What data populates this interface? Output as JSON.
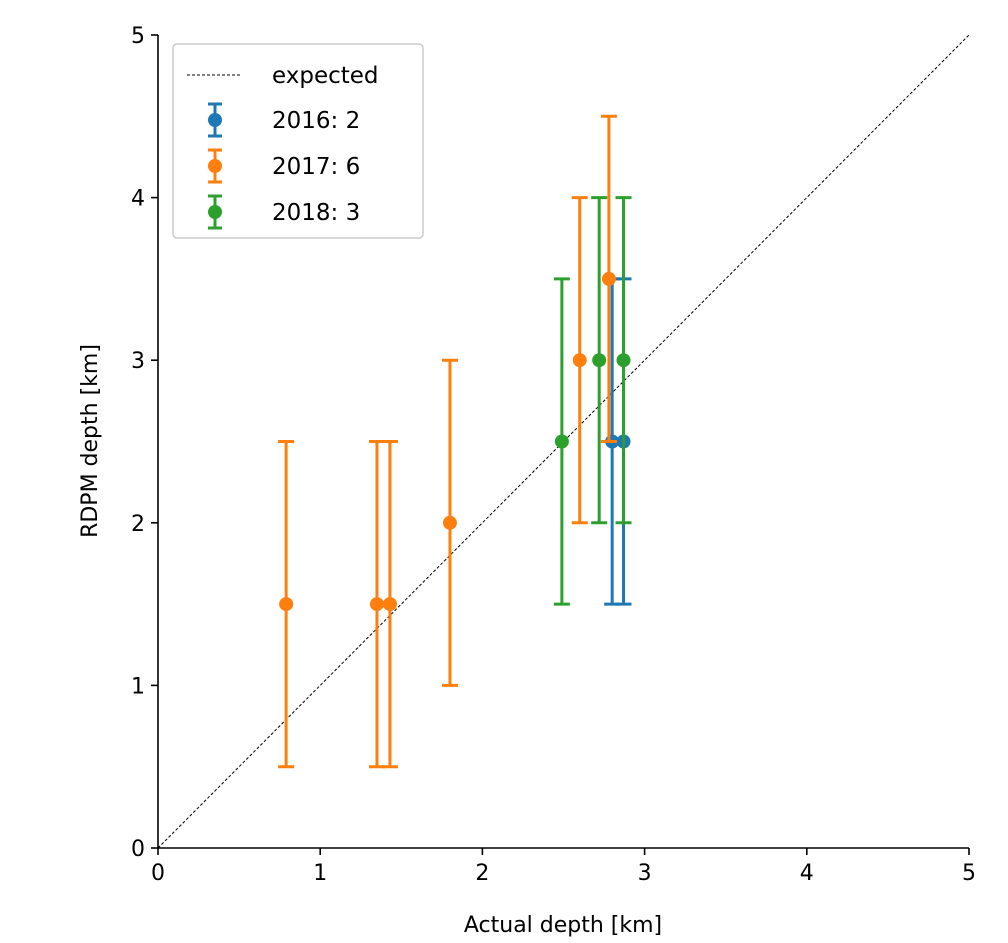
{
  "chart_data": {
    "type": "scatter",
    "xlabel": "Actual depth [km]",
    "ylabel": "RDPM depth [km]",
    "xlim": [
      0,
      5
    ],
    "ylim": [
      0,
      5
    ],
    "x_ticks": [
      "0",
      "1",
      "2",
      "3",
      "4",
      "5"
    ],
    "y_ticks": [
      "0",
      "1",
      "2",
      "3",
      "4",
      "5"
    ],
    "grid": false,
    "legend_position": "top-left",
    "reference_line": {
      "name": "expected",
      "x": [
        0,
        5
      ],
      "y": [
        0,
        5
      ],
      "color": "#000000",
      "style": "dashed"
    },
    "series": [
      {
        "name": "2016: 2",
        "color": "#1f77b4",
        "points": [
          {
            "x": 2.8,
            "y": 2.5,
            "ylow": 1.5,
            "yhigh": 3.5
          },
          {
            "x": 2.87,
            "y": 2.5,
            "ylow": 1.5,
            "yhigh": 3.5
          }
        ]
      },
      {
        "name": "2017: 6",
        "color": "#ff7f0e",
        "points": [
          {
            "x": 0.79,
            "y": 1.5,
            "ylow": 0.5,
            "yhigh": 2.5
          },
          {
            "x": 1.35,
            "y": 1.5,
            "ylow": 0.5,
            "yhigh": 2.5
          },
          {
            "x": 1.43,
            "y": 1.5,
            "ylow": 0.5,
            "yhigh": 2.5
          },
          {
            "x": 1.8,
            "y": 2.0,
            "ylow": 1.0,
            "yhigh": 3.0
          },
          {
            "x": 2.6,
            "y": 3.0,
            "ylow": 2.0,
            "yhigh": 4.0
          },
          {
            "x": 2.78,
            "y": 3.5,
            "ylow": 2.5,
            "yhigh": 4.5
          }
        ]
      },
      {
        "name": "2018: 3",
        "color": "#2ca02c",
        "points": [
          {
            "x": 2.49,
            "y": 2.5,
            "ylow": 1.5,
            "yhigh": 3.5
          },
          {
            "x": 2.72,
            "y": 3.0,
            "ylow": 2.0,
            "yhigh": 4.0
          },
          {
            "x": 2.87,
            "y": 3.0,
            "ylow": 2.0,
            "yhigh": 4.0
          }
        ]
      }
    ]
  }
}
